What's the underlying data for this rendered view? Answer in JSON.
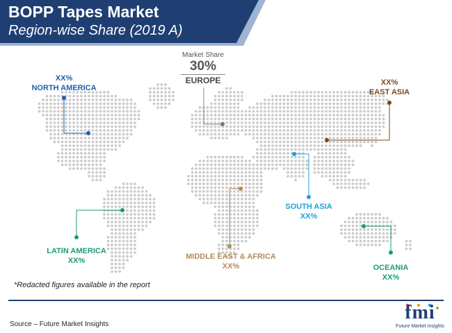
{
  "header": {
    "title": "BOPP Tapes Market",
    "subtitle": "Region-wise Share (2019 A)"
  },
  "featured": {
    "caption": "Market Share",
    "value": "30%",
    "region": "EUROPE"
  },
  "regions": {
    "north_america": {
      "name": "NORTH AMERICA",
      "value": "XX%",
      "color": "#1f5fa8"
    },
    "east_asia": {
      "name": "EAST ASIA",
      "value": "XX%",
      "color": "#7a4a1e"
    },
    "south_asia": {
      "name": "SOUTH ASIA",
      "value": "XX%",
      "color": "#1f9fd6"
    },
    "latin_america": {
      "name": "LATIN AMERICA",
      "value": "XX%",
      "color": "#1a9b7a"
    },
    "mea": {
      "name": "MIDDLE EAST & AFRICA",
      "value": "XX%",
      "color": "#b38b5d"
    },
    "oceania": {
      "name": "OCEANIA",
      "value": "XX%",
      "color": "#1a9b7a"
    },
    "europe": {
      "color": "#888888"
    }
  },
  "colors": {
    "banner": "#1f3f73",
    "accent_stripe": "#9fb4d3",
    "map_dots": "#cbcbcb"
  },
  "footer": {
    "note": "*Redacted figures available in the report",
    "source": "Source – Future Market Insights"
  },
  "logo": {
    "text": "fmi",
    "subtitle": "Future Market Insights"
  }
}
